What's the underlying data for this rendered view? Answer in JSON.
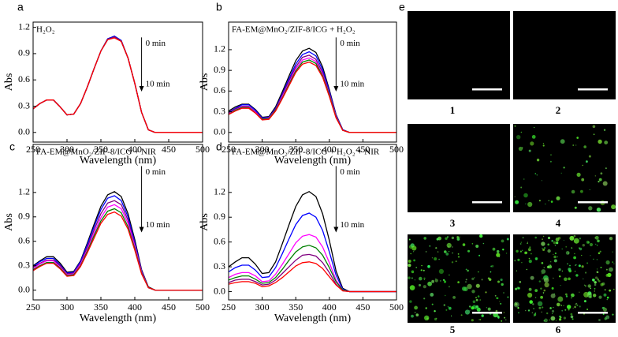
{
  "chart_data": [
    {
      "type": "line",
      "panel_label": "a",
      "inset_label": "H₂O₂",
      "annotation_start": "0 min",
      "annotation_end": "10 min",
      "xlabel": "Wavelength (nm)",
      "ylabel": "Abs",
      "x": [
        250,
        260,
        270,
        280,
        290,
        300,
        310,
        320,
        330,
        340,
        350,
        360,
        370,
        380,
        390,
        400,
        410,
        420,
        430,
        440,
        450,
        460,
        470,
        480,
        490,
        500
      ],
      "series": [
        {
          "color": "#000000",
          "values": [
            0.27,
            0.33,
            0.37,
            0.37,
            0.29,
            0.2,
            0.21,
            0.33,
            0.52,
            0.73,
            0.93,
            1.07,
            1.1,
            1.05,
            0.85,
            0.56,
            0.23,
            0.03,
            0,
            0,
            0,
            0,
            0,
            0,
            0,
            0
          ]
        },
        {
          "color": "#0000ff",
          "values": [
            0.27,
            0.33,
            0.37,
            0.37,
            0.29,
            0.2,
            0.21,
            0.33,
            0.52,
            0.73,
            0.93,
            1.07,
            1.1,
            1.05,
            0.85,
            0.56,
            0.23,
            0.03,
            0,
            0,
            0,
            0,
            0,
            0,
            0,
            0
          ]
        },
        {
          "color": "#ff00ff",
          "values": [
            0.27,
            0.33,
            0.37,
            0.37,
            0.29,
            0.2,
            0.21,
            0.33,
            0.52,
            0.73,
            0.93,
            1.06,
            1.09,
            1.04,
            0.85,
            0.56,
            0.23,
            0.03,
            0,
            0,
            0,
            0,
            0,
            0,
            0,
            0
          ]
        },
        {
          "color": "#008000",
          "values": [
            0.27,
            0.33,
            0.37,
            0.37,
            0.29,
            0.2,
            0.21,
            0.33,
            0.52,
            0.73,
            0.93,
            1.06,
            1.09,
            1.04,
            0.85,
            0.56,
            0.23,
            0.03,
            0,
            0,
            0,
            0,
            0,
            0,
            0,
            0
          ]
        },
        {
          "color": "#800080",
          "values": [
            0.27,
            0.33,
            0.37,
            0.37,
            0.29,
            0.2,
            0.21,
            0.33,
            0.52,
            0.73,
            0.93,
            1.06,
            1.09,
            1.04,
            0.85,
            0.56,
            0.23,
            0.03,
            0,
            0,
            0,
            0,
            0,
            0,
            0,
            0
          ]
        },
        {
          "color": "#ff0000",
          "values": [
            0.27,
            0.33,
            0.37,
            0.37,
            0.29,
            0.2,
            0.21,
            0.33,
            0.52,
            0.73,
            0.93,
            1.06,
            1.08,
            1.04,
            0.85,
            0.56,
            0.23,
            0.03,
            0,
            0,
            0,
            0,
            0,
            0,
            0,
            0
          ]
        }
      ],
      "xlim": [
        250,
        500
      ],
      "xticks": [
        250,
        300,
        350,
        400,
        450,
        500
      ],
      "ylim": [
        -0.11,
        1.26
      ],
      "yticks": [
        {
          "value": 0,
          "label": "0.0"
        },
        0.3,
        0.6,
        0.9,
        1.2
      ]
    },
    {
      "type": "line",
      "panel_label": "b",
      "inset_label": "FA-EM@MnO₂/ZIF-8/ICG + H₂O₂",
      "annotation_start": "0 min",
      "annotation_end": "10 min",
      "xlabel": "Wavelength (nm)",
      "ylabel": "Abs",
      "x": [
        250,
        260,
        270,
        280,
        290,
        300,
        310,
        320,
        330,
        340,
        350,
        360,
        370,
        380,
        390,
        400,
        410,
        420,
        430,
        440,
        450,
        460,
        470,
        480,
        490,
        500
      ],
      "series": [
        {
          "color": "#000000",
          "values": [
            0.31,
            0.37,
            0.41,
            0.41,
            0.33,
            0.22,
            0.23,
            0.37,
            0.59,
            0.82,
            1.04,
            1.18,
            1.22,
            1.16,
            0.95,
            0.62,
            0.26,
            0.04,
            0,
            0,
            0,
            0,
            0,
            0,
            0,
            0
          ]
        },
        {
          "color": "#0000ff",
          "values": [
            0.29,
            0.35,
            0.4,
            0.4,
            0.32,
            0.21,
            0.22,
            0.35,
            0.56,
            0.78,
            0.99,
            1.13,
            1.17,
            1.11,
            0.91,
            0.6,
            0.25,
            0.04,
            0,
            0,
            0,
            0,
            0,
            0,
            0,
            0
          ]
        },
        {
          "color": "#800080",
          "values": [
            0.28,
            0.34,
            0.38,
            0.38,
            0.3,
            0.2,
            0.21,
            0.34,
            0.54,
            0.75,
            0.95,
            1.09,
            1.12,
            1.06,
            0.87,
            0.57,
            0.24,
            0.03,
            0,
            0,
            0,
            0,
            0,
            0,
            0,
            0
          ]
        },
        {
          "color": "#ff00ff",
          "values": [
            0.27,
            0.32,
            0.37,
            0.37,
            0.29,
            0.19,
            0.21,
            0.32,
            0.52,
            0.72,
            0.92,
            1.05,
            1.08,
            1.03,
            0.84,
            0.55,
            0.23,
            0.03,
            0,
            0,
            0,
            0,
            0,
            0,
            0,
            0
          ]
        },
        {
          "color": "#008000",
          "values": [
            0.26,
            0.32,
            0.36,
            0.36,
            0.28,
            0.19,
            0.2,
            0.32,
            0.5,
            0.7,
            0.89,
            1.02,
            1.05,
            1.0,
            0.82,
            0.54,
            0.22,
            0.03,
            0,
            0,
            0,
            0,
            0,
            0,
            0,
            0
          ]
        },
        {
          "color": "#ff0000",
          "values": [
            0.26,
            0.31,
            0.35,
            0.35,
            0.28,
            0.18,
            0.19,
            0.31,
            0.49,
            0.68,
            0.87,
            0.99,
            1.02,
            0.97,
            0.8,
            0.52,
            0.21,
            0.03,
            0,
            0,
            0,
            0,
            0,
            0,
            0,
            0
          ]
        }
      ],
      "xlim": [
        250,
        500
      ],
      "xticks": [
        250,
        300,
        350,
        400,
        450,
        500
      ],
      "ylim": [
        -0.14,
        1.6
      ],
      "yticks": [
        {
          "value": 0,
          "label": "0.0"
        },
        0.3,
        0.6,
        0.9,
        1.2
      ]
    },
    {
      "type": "line",
      "panel_label": "c",
      "inset_label": "FA-EM@MnO₂/ZIF-8/ICG + NIR",
      "annotation_start": "0 min",
      "annotation_end": "10 min",
      "xlabel": "Wavelength (nm)",
      "ylabel": "Abs",
      "x": [
        250,
        260,
        270,
        280,
        290,
        300,
        310,
        320,
        330,
        340,
        350,
        360,
        370,
        380,
        390,
        400,
        410,
        420,
        430,
        440,
        450,
        460,
        470,
        480,
        490,
        500
      ],
      "series": [
        {
          "color": "#000000",
          "values": [
            0.3,
            0.36,
            0.41,
            0.41,
            0.33,
            0.22,
            0.23,
            0.36,
            0.58,
            0.81,
            1.03,
            1.17,
            1.21,
            1.15,
            0.94,
            0.62,
            0.25,
            0.04,
            0,
            0,
            0,
            0,
            0,
            0,
            0,
            0
          ]
        },
        {
          "color": "#0000ff",
          "values": [
            0.29,
            0.35,
            0.39,
            0.39,
            0.31,
            0.21,
            0.22,
            0.35,
            0.56,
            0.78,
            0.99,
            1.13,
            1.16,
            1.1,
            0.9,
            0.59,
            0.24,
            0.03,
            0,
            0,
            0,
            0,
            0,
            0,
            0,
            0
          ]
        },
        {
          "color": "#800080",
          "values": [
            0.28,
            0.33,
            0.37,
            0.37,
            0.3,
            0.2,
            0.21,
            0.33,
            0.53,
            0.74,
            0.94,
            1.07,
            1.1,
            1.05,
            0.86,
            0.56,
            0.23,
            0.03,
            0,
            0,
            0,
            0,
            0,
            0,
            0,
            0
          ]
        },
        {
          "color": "#ff00ff",
          "values": [
            0.26,
            0.32,
            0.36,
            0.36,
            0.28,
            0.19,
            0.2,
            0.32,
            0.5,
            0.7,
            0.89,
            1.02,
            1.05,
            1.0,
            0.82,
            0.54,
            0.22,
            0.03,
            0,
            0,
            0,
            0,
            0,
            0,
            0,
            0
          ]
        },
        {
          "color": "#008000",
          "values": [
            0.25,
            0.3,
            0.34,
            0.34,
            0.27,
            0.18,
            0.19,
            0.3,
            0.48,
            0.67,
            0.85,
            0.97,
            1.0,
            0.95,
            0.78,
            0.51,
            0.21,
            0.03,
            0,
            0,
            0,
            0,
            0,
            0,
            0,
            0
          ]
        },
        {
          "color": "#ff0000",
          "values": [
            0.24,
            0.29,
            0.33,
            0.33,
            0.26,
            0.17,
            0.18,
            0.29,
            0.46,
            0.64,
            0.82,
            0.93,
            0.96,
            0.91,
            0.75,
            0.49,
            0.2,
            0.03,
            0,
            0,
            0,
            0,
            0,
            0,
            0,
            0
          ]
        }
      ],
      "xlim": [
        250,
        500
      ],
      "xticks": [
        250,
        300,
        350,
        400,
        450,
        500
      ],
      "ylim": [
        -0.12,
        1.79
      ],
      "yticks": [
        {
          "value": 0,
          "label": "0.0"
        },
        0.3,
        0.6,
        0.9,
        1.2
      ]
    },
    {
      "type": "line",
      "panel_label": "d",
      "inset_label": "FA-EM@MnO₂/ZIF-8/ICG + H₂O₂ + NIR",
      "annotation_start": "0 min",
      "annotation_end": "10 min",
      "xlabel": "Wavelength (nm)",
      "ylabel": "Abs",
      "x": [
        250,
        260,
        270,
        280,
        290,
        300,
        310,
        320,
        330,
        340,
        350,
        360,
        370,
        380,
        390,
        400,
        410,
        420,
        430,
        440,
        450,
        460,
        470,
        480,
        490,
        500
      ],
      "series": [
        {
          "color": "#000000",
          "values": [
            0.3,
            0.36,
            0.41,
            0.41,
            0.33,
            0.22,
            0.23,
            0.36,
            0.58,
            0.81,
            1.03,
            1.17,
            1.21,
            1.15,
            0.94,
            0.62,
            0.25,
            0.04,
            0,
            0,
            0,
            0,
            0,
            0,
            0,
            0
          ]
        },
        {
          "color": "#0000ff",
          "values": [
            0.24,
            0.29,
            0.32,
            0.32,
            0.26,
            0.17,
            0.18,
            0.29,
            0.46,
            0.64,
            0.81,
            0.92,
            0.95,
            0.9,
            0.74,
            0.48,
            0.2,
            0.03,
            0,
            0,
            0,
            0,
            0,
            0,
            0,
            0
          ]
        },
        {
          "color": "#ff00ff",
          "values": [
            0.17,
            0.21,
            0.23,
            0.23,
            0.19,
            0.12,
            0.13,
            0.21,
            0.33,
            0.46,
            0.59,
            0.67,
            0.69,
            0.66,
            0.54,
            0.35,
            0.14,
            0.02,
            0,
            0,
            0,
            0,
            0,
            0,
            0,
            0
          ]
        },
        {
          "color": "#008000",
          "values": [
            0.14,
            0.17,
            0.19,
            0.19,
            0.15,
            0.1,
            0.11,
            0.17,
            0.27,
            0.38,
            0.48,
            0.54,
            0.56,
            0.53,
            0.44,
            0.29,
            0.12,
            0.02,
            0,
            0,
            0,
            0,
            0,
            0,
            0,
            0
          ]
        },
        {
          "color": "#800080",
          "values": [
            0.11,
            0.14,
            0.15,
            0.15,
            0.12,
            0.08,
            0.09,
            0.14,
            0.22,
            0.3,
            0.38,
            0.44,
            0.45,
            0.43,
            0.35,
            0.23,
            0.09,
            0.01,
            0,
            0,
            0,
            0,
            0,
            0,
            0,
            0
          ]
        },
        {
          "color": "#ff0000",
          "values": [
            0.09,
            0.11,
            0.12,
            0.12,
            0.1,
            0.06,
            0.07,
            0.11,
            0.17,
            0.24,
            0.31,
            0.35,
            0.36,
            0.34,
            0.28,
            0.18,
            0.08,
            0.01,
            0,
            0,
            0,
            0,
            0,
            0,
            0,
            0
          ]
        }
      ],
      "xlim": [
        250,
        500
      ],
      "xticks": [
        250,
        300,
        350,
        400,
        450,
        500
      ],
      "ylim": [
        -0.1,
        1.78
      ],
      "yticks": [
        {
          "value": 0,
          "label": "0.0"
        },
        0.3,
        0.6,
        0.9,
        1.2
      ]
    }
  ],
  "panel_e": {
    "panel_label": "e",
    "images": [
      {
        "label": "1"
      },
      {
        "label": "2"
      },
      {
        "label": "3"
      },
      {
        "label": "4"
      },
      {
        "label": "5"
      },
      {
        "label": "6"
      }
    ]
  }
}
